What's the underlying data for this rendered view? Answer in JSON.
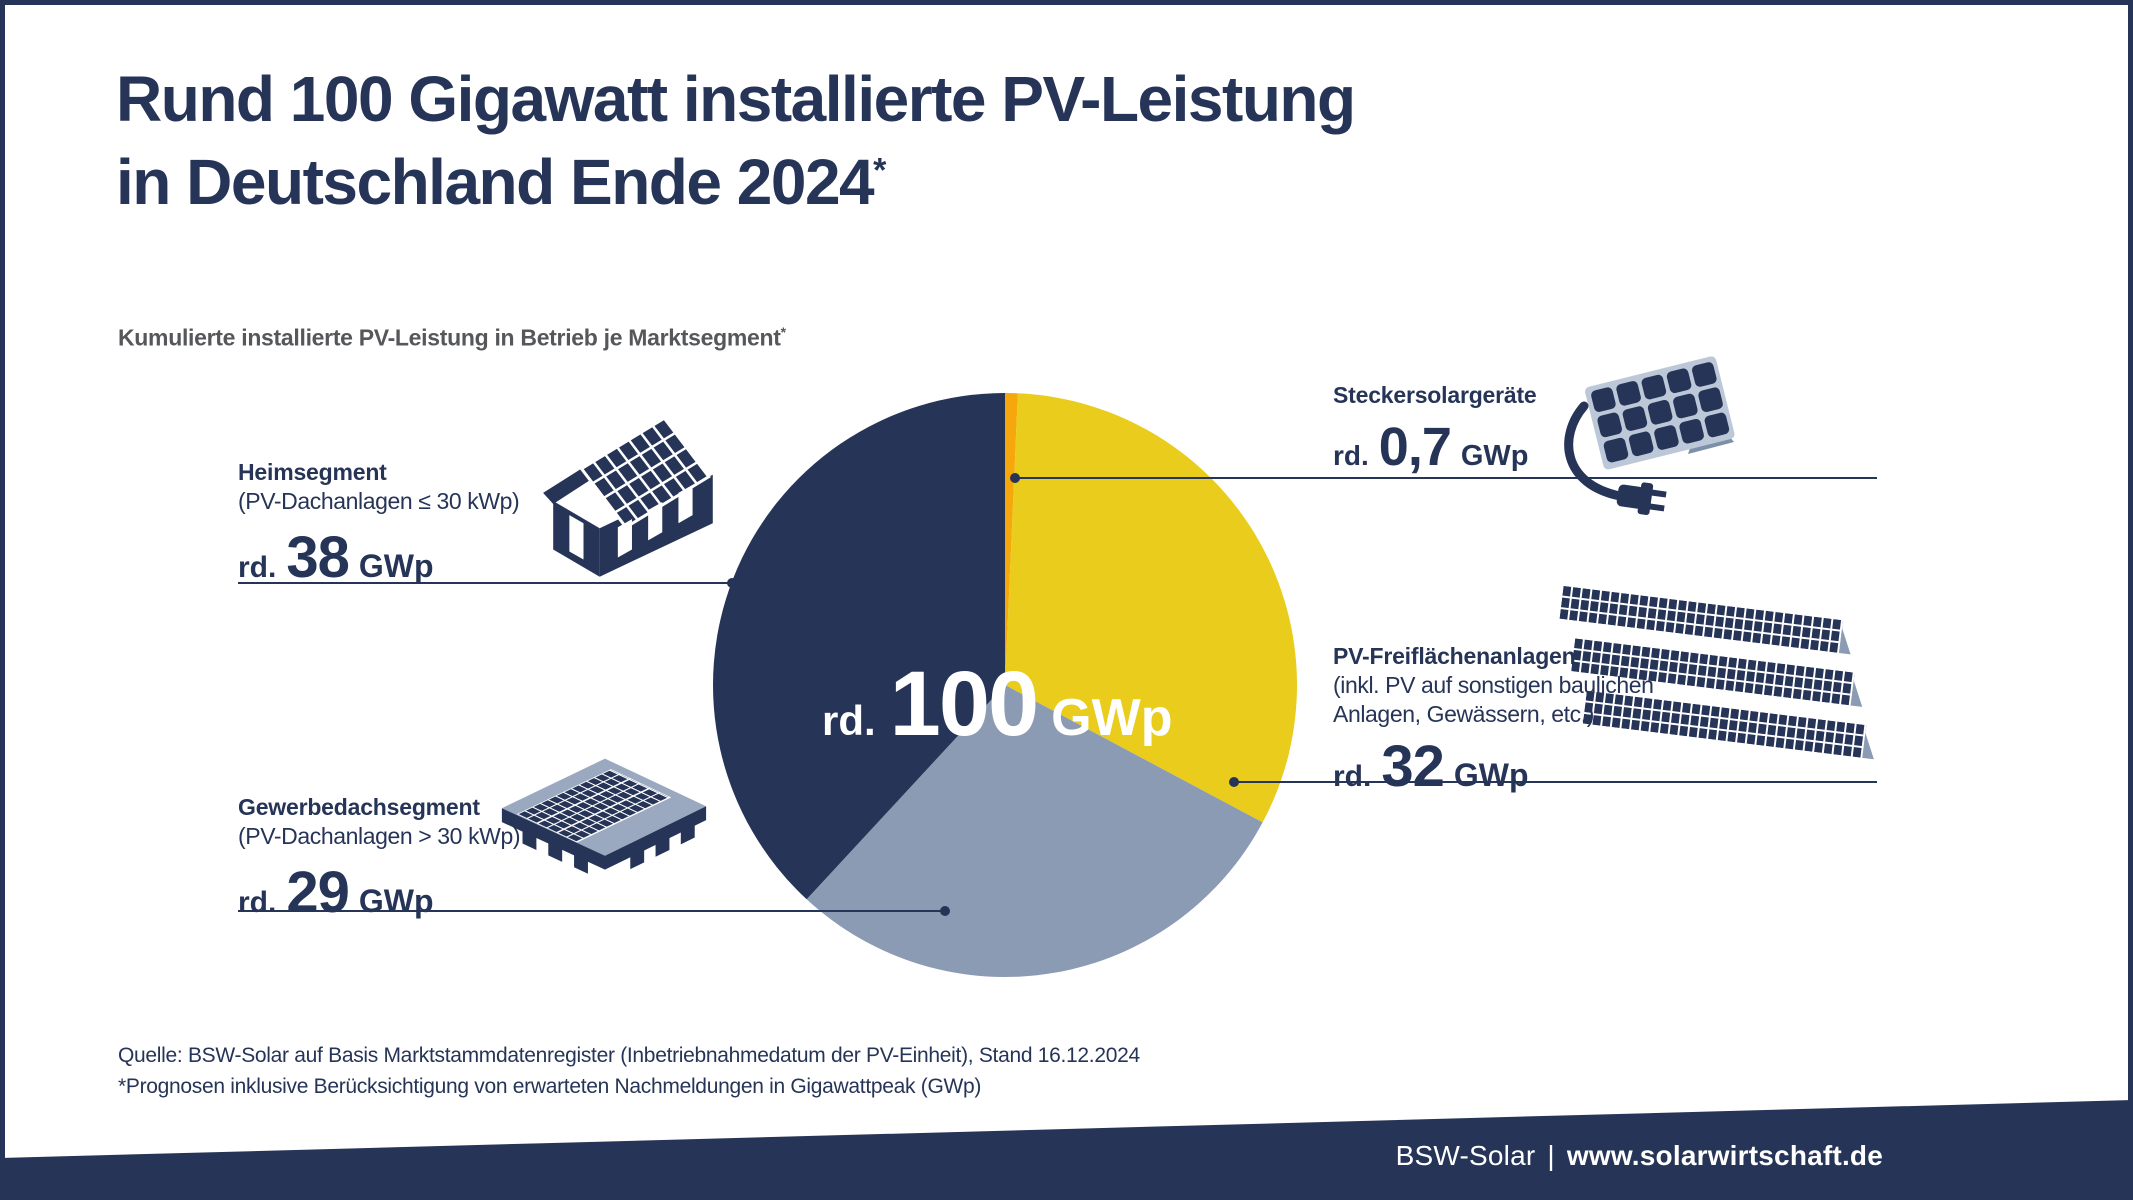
{
  "title": {
    "line1": "Rund 100 Gigawatt installierte PV-Leistung",
    "line2": "in Deutschland Ende 2024",
    "asterisk": "*"
  },
  "subtitle": {
    "text": "Kumulierte installierte PV-Leistung in Betrieb je Marktsegment",
    "asterisk": "*"
  },
  "chart_data": {
    "type": "pie",
    "title": "Kumulierte installierte PV-Leistung in Betrieb je Marktsegment",
    "unit": "GWp",
    "total": 99.7,
    "start_angle_deg": 0,
    "direction": "clockwise",
    "center_label": {
      "prefix": "rd.",
      "value": "100",
      "unit": "GWp"
    },
    "slices": [
      {
        "id": "steckersolargeraete",
        "name": "Steckersolargeräte",
        "value": 0.7,
        "display_value": "0,7",
        "color": "#F5A70B"
      },
      {
        "id": "freiflaechen",
        "name": "PV-Freiflächenanlagen",
        "value": 32,
        "display_value": "32",
        "color": "#E9CC1C"
      },
      {
        "id": "gewerbedach",
        "name": "Gewerbedachsegment",
        "value": 29,
        "display_value": "29",
        "color": "#8C9BB4"
      },
      {
        "id": "heim",
        "name": "Heimsegment",
        "value": 38,
        "display_value": "38",
        "color": "#263457"
      }
    ],
    "legend_position": "callout-labels"
  },
  "segments": {
    "heim": {
      "title": "Heimsegment",
      "subtitle": "(PV-Dachanlagen ≤ 30 kWp)",
      "prefix": "rd.",
      "value": "38",
      "unit": "GWp"
    },
    "gewerbe": {
      "title": "Gewerbedachsegment",
      "subtitle": "(PV-Dachanlagen > 30 kWp)",
      "prefix": "rd.",
      "value": "29",
      "unit": "GWp"
    },
    "stecker": {
      "title": "Steckersolargeräte",
      "prefix": "rd.",
      "value": "0,7",
      "unit": "GWp"
    },
    "freiflaeche": {
      "title": "PV-Freiflächenanlagen",
      "subtitle1": "(inkl. PV auf sonstigen baulichen",
      "subtitle2": "Anlagen, Gewässern, etc.)",
      "prefix": "rd.",
      "value": "32",
      "unit": "GWp"
    }
  },
  "source": {
    "line1": "Quelle: BSW-Solar auf Basis Marktstammdatenregister (Inbetriebnahmedatum der PV-Einheit), Stand 16.12.2024",
    "line2": "*Prognosen inklusive Berücksichtigung von erwarteten Nachmeldungen in Gigawattpeak (GWp)"
  },
  "footer": {
    "brand": "BSW-Solar",
    "separator": "|",
    "url": "www.solarwirtschaft.de"
  },
  "colors": {
    "navy": "#263457",
    "yellow": "#E9CC1C",
    "orange": "#F5A70B",
    "gray_blue": "#8C9BB4",
    "slab_gray": "#9AA9C0",
    "panel_frame": "#BCC7D8",
    "support_gray": "#7E90A9",
    "subtitle_gray": "#55575B"
  }
}
